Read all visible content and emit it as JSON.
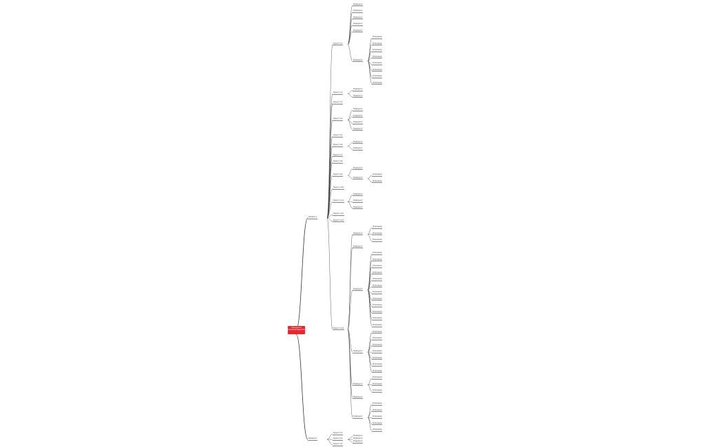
{
  "colors": {
    "root": "#e8262d",
    "line": "#333333",
    "node_bg": "#f4f4f4"
  },
  "root": {
    "label": "Продажа пиломатериалов"
  },
  "branches": [
    {
      "label": "Раздел 1",
      "children": [
        {
          "label": "Пункт 1.1",
          "children": [
            {
              "label": "Подпункт"
            },
            {
              "label": "Подпункт"
            },
            {
              "label": "Подпункт"
            },
            {
              "label": "Подпункт"
            },
            {
              "label": "Подпункт"
            },
            {
              "label": "Подпункт",
              "children": [
                {
                  "label": "Описание"
                },
                {
                  "label": "Описание"
                },
                {
                  "label": "Описание"
                },
                {
                  "label": "Описание"
                },
                {
                  "label": "Описание"
                },
                {
                  "label": "Описание"
                },
                {
                  "label": "Описание"
                },
                {
                  "label": "Описание"
                }
              ]
            }
          ]
        },
        {
          "label": "Пункт 1.2",
          "children": [
            {
              "label": "Подпункт"
            },
            {
              "label": "Подпункт"
            }
          ]
        },
        {
          "label": "Пункт 1.3"
        },
        {
          "label": "Пункт 1.4",
          "children": [
            {
              "label": "Подпункт"
            },
            {
              "label": "Подпункт"
            },
            {
              "label": "Подпункт"
            },
            {
              "label": "Подпункт"
            }
          ]
        },
        {
          "label": "Пункт 1.5"
        },
        {
          "label": "Пункт 1.6",
          "children": [
            {
              "label": "Подпункт"
            },
            {
              "label": "Подпункт"
            }
          ]
        },
        {
          "label": "Пункт 1.7"
        },
        {
          "label": "Пункт 1.8"
        },
        {
          "label": "Пункт 1.9",
          "children": [
            {
              "label": "Подпункт"
            },
            {
              "label": "Подпункт",
              "children": [
                {
                  "label": "Описание"
                },
                {
                  "label": "Описание"
                }
              ]
            }
          ]
        },
        {
          "label": "Пункт 1.10"
        },
        {
          "label": "Пункт 1.11",
          "children": [
            {
              "label": "Подпункт"
            },
            {
              "label": "Подпункт"
            },
            {
              "label": "Подпункт"
            }
          ]
        },
        {
          "label": "Пункт 1.12"
        },
        {
          "label": "Пункт 1.13"
        },
        {
          "label": "Пункт 1.14",
          "children": [
            {
              "label": "Подпункт",
              "children": [
                {
                  "label": "Описание"
                },
                {
                  "label": "Описание"
                },
                {
                  "label": "Описание"
                }
              ]
            },
            {
              "label": "Подпункт"
            },
            {
              "label": "Подпункт",
              "children": [
                {
                  "label": "Описание"
                },
                {
                  "label": "Описание"
                },
                {
                  "label": "Описание"
                },
                {
                  "label": "Описание"
                },
                {
                  "label": "Описание"
                },
                {
                  "label": "Описание"
                },
                {
                  "label": "Описание"
                },
                {
                  "label": "Описание"
                },
                {
                  "label": "Описание"
                },
                {
                  "label": "Описание"
                },
                {
                  "label": "Описание"
                },
                {
                  "label": "Описание"
                }
              ]
            },
            {
              "label": "Подпункт",
              "children": [
                {
                  "label": "Описание"
                },
                {
                  "label": "Описание"
                },
                {
                  "label": "Описание"
                },
                {
                  "label": "Описание"
                },
                {
                  "label": "Описание"
                },
                {
                  "label": "Описание"
                },
                {
                  "label": "Описание"
                }
              ]
            },
            {
              "label": "Подпункт",
              "children": [
                {
                  "label": "Описание"
                },
                {
                  "label": "Описание"
                },
                {
                  "label": "Описание"
                }
              ]
            },
            {
              "label": "Подпункт"
            },
            {
              "label": "Подпункт",
              "children": [
                {
                  "label": "Описание"
                },
                {
                  "label": "Описание"
                },
                {
                  "label": "Описание"
                },
                {
                  "label": "Описание"
                },
                {
                  "label": "Описание"
                }
              ]
            }
          ]
        }
      ]
    },
    {
      "label": "Раздел 2",
      "children": [
        {
          "label": "Пункт 2.1"
        },
        {
          "label": "Пункт 2.2",
          "children": [
            {
              "label": "Подпункт"
            },
            {
              "label": "Подпункт"
            },
            {
              "label": "Подпункт"
            }
          ]
        },
        {
          "label": "Пункт 2.3"
        }
      ]
    }
  ]
}
